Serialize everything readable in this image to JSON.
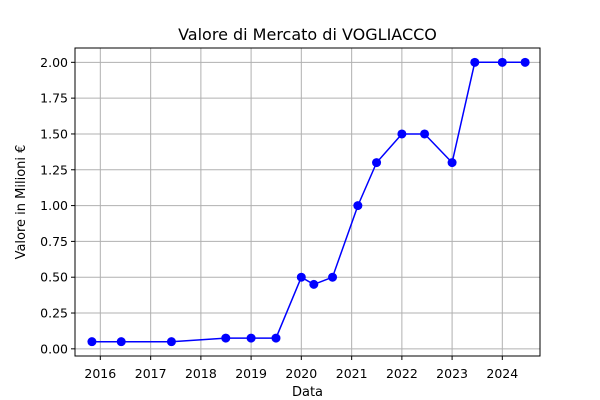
{
  "chart_data": {
    "type": "line",
    "title": "Valore di Mercato di VOGLIACCO",
    "xlabel": "Data",
    "ylabel": "Valore in Milioni €",
    "x_ticks": [
      "2016",
      "2017",
      "2018",
      "2019",
      "2020",
      "2021",
      "2022",
      "2023",
      "2024"
    ],
    "y_ticks": [
      "0.00",
      "0.25",
      "0.50",
      "0.75",
      "1.00",
      "1.25",
      "1.50",
      "1.75",
      "2.00"
    ],
    "ylim": [
      -0.05,
      2.1
    ],
    "xlim": [
      "2015-07-01",
      "2024-10-01"
    ],
    "grid": true,
    "marker": "circle",
    "line_color": "#0000ff",
    "series": [
      {
        "points": [
          {
            "x": "2015-11-01",
            "y": 0.05
          },
          {
            "x": "2016-06-01",
            "y": 0.05
          },
          {
            "x": "2017-06-01",
            "y": 0.05
          },
          {
            "x": "2018-07-01",
            "y": 0.075
          },
          {
            "x": "2019-01-01",
            "y": 0.075
          },
          {
            "x": "2019-07-01",
            "y": 0.075
          },
          {
            "x": "2020-01-01",
            "y": 0.5
          },
          {
            "x": "2020-04-01",
            "y": 0.45
          },
          {
            "x": "2020-08-15",
            "y": 0.5
          },
          {
            "x": "2021-02-15",
            "y": 1.0
          },
          {
            "x": "2021-07-01",
            "y": 1.3
          },
          {
            "x": "2022-01-01",
            "y": 1.5
          },
          {
            "x": "2022-06-15",
            "y": 1.5
          },
          {
            "x": "2023-01-01",
            "y": 1.3
          },
          {
            "x": "2023-06-15",
            "y": 2.0
          },
          {
            "x": "2024-01-01",
            "y": 2.0
          },
          {
            "x": "2024-06-15",
            "y": 2.0
          }
        ]
      }
    ]
  }
}
